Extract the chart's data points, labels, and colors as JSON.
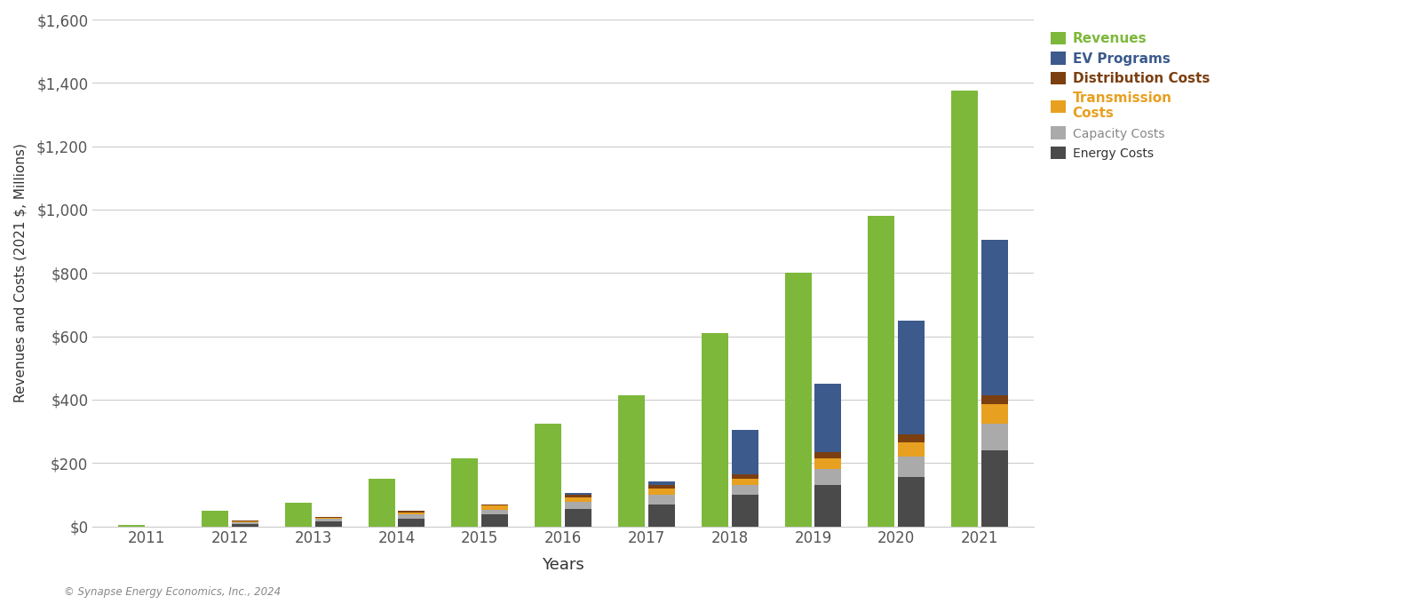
{
  "years": [
    2011,
    2012,
    2013,
    2014,
    2015,
    2016,
    2017,
    2018,
    2019,
    2020,
    2021
  ],
  "revenues": [
    5,
    50,
    75,
    150,
    215,
    325,
    415,
    610,
    800,
    980,
    1375
  ],
  "ev_programs": [
    0,
    0,
    0,
    0,
    0,
    5,
    10,
    140,
    215,
    360,
    490
  ],
  "distribution_costs": [
    0,
    2,
    3,
    5,
    5,
    8,
    12,
    15,
    20,
    25,
    30
  ],
  "transmission_costs": [
    0,
    3,
    5,
    8,
    12,
    15,
    20,
    20,
    35,
    45,
    60
  ],
  "capacity_costs": [
    0,
    5,
    8,
    12,
    15,
    22,
    30,
    30,
    50,
    65,
    85
  ],
  "energy_costs": [
    0,
    8,
    15,
    25,
    38,
    55,
    70,
    100,
    130,
    155,
    240
  ],
  "colors": {
    "revenues": "#7DB83A",
    "ev_programs": "#3C5A8C",
    "distribution_costs": "#7B3F10",
    "transmission_costs": "#E8A020",
    "capacity_costs": "#AAAAAA",
    "energy_costs": "#4A4A4A"
  },
  "ylabel": "Revenues and Costs (2021 $, Millions)",
  "xlabel": "Years",
  "ylim": [
    0,
    1600
  ],
  "yticks": [
    0,
    200,
    400,
    600,
    800,
    1000,
    1200,
    1400,
    1600
  ],
  "ytick_labels": [
    "$0",
    "$200",
    "$400",
    "$600",
    "$800",
    "$1,000",
    "$1,200",
    "$1,400",
    "$1,600"
  ],
  "legend_labels": [
    "Revenues",
    "EV Programs",
    "Distribution Costs",
    "Transmission\nCosts",
    "Capacity Costs",
    "Energy Costs"
  ],
  "legend_colors": [
    "#7DB83A",
    "#3C5A8C",
    "#7B3F10",
    "#E8A020",
    "#AAAAAA",
    "#4A4A4A"
  ],
  "legend_bold": [
    true,
    true,
    true,
    true,
    false,
    false
  ],
  "legend_text_colors": [
    "#7DB83A",
    "#3C5A8C",
    "#7B3F10",
    "#E8A020",
    "#888888",
    "#333333"
  ],
  "footnote": "© Synapse Energy Economics, Inc., 2024",
  "background_color": "#FFFFFF",
  "bar_width": 0.32
}
